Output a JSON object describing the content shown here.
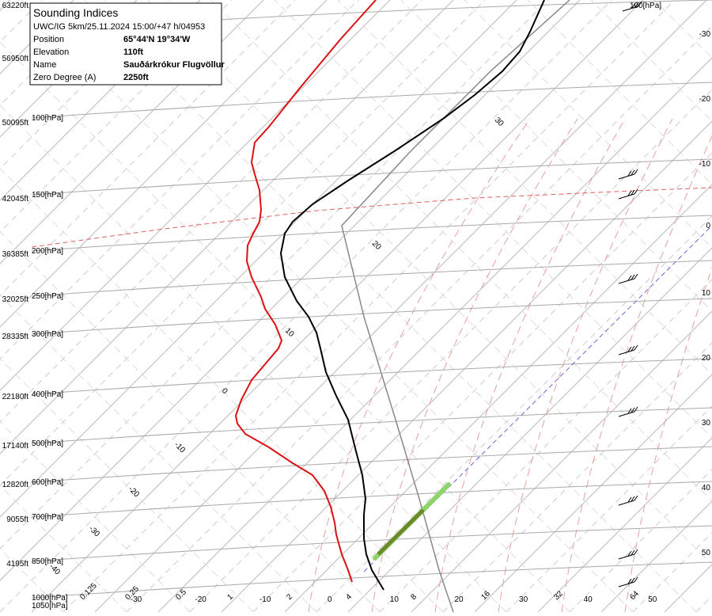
{
  "info_box": {
    "title": "Sounding Indices",
    "subtitle": "UWC/IG 5km/25.11.2024 15:00/+47 h/04953",
    "rows": [
      [
        "Position",
        "65°44'N 19°34'W"
      ],
      [
        "Elevation",
        "110ft"
      ],
      [
        "Name",
        "Sauðárkrókur Flugvöllur"
      ],
      [
        "Zero Degree (A)",
        "2250ft"
      ]
    ]
  },
  "left_axis": {
    "altitudes": [
      "63220ft",
      "56950ft",
      "50095ft",
      "42045ft",
      "36385ft",
      "32025ft",
      "28335ft",
      "22180ft",
      "17140ft",
      "12820ft",
      "9055ft",
      "4195ft"
    ],
    "pressures": [
      "100[hPa]",
      "150[hPa]",
      "200[hPa]",
      "250[hPa]",
      "300[hPa]",
      "400[hPa]",
      "500[hPa]",
      "600[hPa]",
      "700[hPa]",
      "850[hPa]",
      "1000[hPa]",
      "1050[hPa]"
    ],
    "top_pressure": "100[hPa]"
  },
  "right_axis": {
    "labels": [
      "-30",
      "-20",
      "-10",
      "0",
      "10",
      "20",
      "30",
      "40",
      "50"
    ]
  },
  "bottom_axis": {
    "temperatures": [
      "-30",
      "-20",
      "-10",
      "0",
      "10",
      "20",
      "30",
      "40",
      "50"
    ],
    "mixing_ratios": [
      "0.125",
      "0.25",
      "0.5",
      "1",
      "2",
      "4",
      "8",
      "16",
      "32",
      "64"
    ]
  },
  "isotherm_labels": [
    "30",
    "20",
    "10",
    "0",
    "-10",
    "-20",
    "-30",
    "-40"
  ]
}
